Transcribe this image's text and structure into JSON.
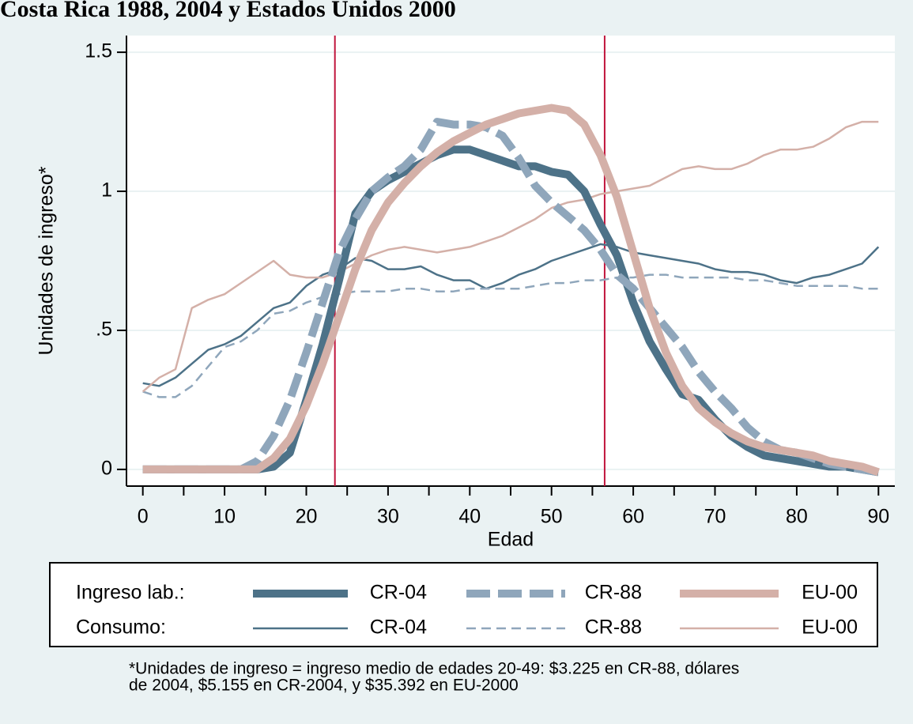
{
  "chart_data": {
    "type": "line",
    "title": "Costa Rica 1988, 2004 y Estados Unidos 2000",
    "x_label": "Edad",
    "y_label": "Unidades de ingreso*",
    "x": [
      0,
      2,
      4,
      6,
      8,
      10,
      12,
      14,
      16,
      18,
      20,
      22,
      24,
      26,
      28,
      30,
      32,
      34,
      36,
      38,
      40,
      42,
      44,
      46,
      48,
      50,
      52,
      54,
      56,
      58,
      60,
      62,
      64,
      66,
      68,
      70,
      72,
      74,
      76,
      78,
      80,
      82,
      84,
      86,
      88,
      90
    ],
    "xlim": [
      -2,
      92
    ],
    "xticks": [
      0,
      10,
      20,
      30,
      40,
      50,
      60,
      70,
      80,
      90
    ],
    "xminor_ticks": [
      5,
      15,
      25,
      35,
      45,
      55,
      65,
      75,
      85
    ],
    "ylim": [
      -0.06,
      1.56
    ],
    "yticks": [
      0,
      {
        "value": 0.5,
        "label": ".5"
      },
      1,
      1.5
    ],
    "grid": true,
    "vlines": [
      23.5,
      56.5
    ],
    "vline_color": "#c0143c",
    "legend_rows": [
      "Ingreso lab.:",
      "Consumo:"
    ],
    "series": [
      {
        "name": "CR-04",
        "color": "#4d7288",
        "line_width": 10,
        "dash": null,
        "values": [
          0,
          0,
          0,
          0,
          0,
          0,
          0,
          0,
          0.01,
          0.06,
          0.25,
          0.45,
          0.68,
          0.92,
          1.0,
          1.04,
          1.07,
          1.1,
          1.13,
          1.15,
          1.15,
          1.13,
          1.11,
          1.09,
          1.09,
          1.07,
          1.06,
          1.0,
          0.88,
          0.77,
          0.6,
          0.46,
          0.36,
          0.27,
          0.25,
          0.18,
          0.12,
          0.08,
          0.05,
          0.04,
          0.03,
          0.02,
          0.01,
          0.01,
          0.0,
          -0.01
        ]
      },
      {
        "name": "CR-88",
        "color": "#8fa6bb",
        "line_width": 10,
        "dash": "30 10",
        "values": [
          0,
          0,
          0,
          0,
          0,
          0,
          0,
          0.03,
          0.12,
          0.25,
          0.42,
          0.6,
          0.78,
          0.9,
          1.0,
          1.05,
          1.09,
          1.15,
          1.25,
          1.24,
          1.24,
          1.23,
          1.2,
          1.12,
          1.02,
          0.96,
          0.91,
          0.86,
          0.79,
          0.7,
          0.65,
          0.58,
          0.51,
          0.44,
          0.35,
          0.28,
          0.22,
          0.15,
          0.1,
          0.07,
          0.06,
          0.04,
          0.02,
          0.01,
          0.0,
          -0.01
        ]
      },
      {
        "name": "EU-00",
        "color": "#d4b0a8",
        "line_width": 10,
        "dash": null,
        "values": [
          0,
          0,
          0,
          0,
          0,
          0,
          0,
          0,
          0.04,
          0.11,
          0.23,
          0.38,
          0.55,
          0.72,
          0.86,
          0.96,
          1.03,
          1.09,
          1.14,
          1.18,
          1.21,
          1.24,
          1.26,
          1.28,
          1.29,
          1.3,
          1.29,
          1.24,
          1.13,
          0.98,
          0.78,
          0.58,
          0.42,
          0.3,
          0.22,
          0.17,
          0.13,
          0.1,
          0.08,
          0.07,
          0.06,
          0.05,
          0.03,
          0.02,
          0.01,
          -0.01
        ]
      },
      {
        "name": "CR-04",
        "color": "#4d7288",
        "line_width": 2.5,
        "dash": null,
        "values": [
          0.31,
          0.3,
          0.33,
          0.38,
          0.43,
          0.45,
          0.48,
          0.53,
          0.58,
          0.6,
          0.66,
          0.7,
          0.72,
          0.76,
          0.75,
          0.72,
          0.72,
          0.73,
          0.7,
          0.68,
          0.68,
          0.65,
          0.67,
          0.7,
          0.72,
          0.75,
          0.77,
          0.79,
          0.81,
          0.8,
          0.78,
          0.77,
          0.76,
          0.75,
          0.74,
          0.72,
          0.71,
          0.71,
          0.7,
          0.68,
          0.67,
          0.69,
          0.7,
          0.72,
          0.74,
          0.8
        ]
      },
      {
        "name": "CR-88",
        "color": "#8fa6bb",
        "line_width": 2.5,
        "dash": "12 7",
        "values": [
          0.28,
          0.26,
          0.26,
          0.3,
          0.37,
          0.44,
          0.46,
          0.5,
          0.56,
          0.57,
          0.6,
          0.62,
          0.63,
          0.64,
          0.64,
          0.64,
          0.65,
          0.65,
          0.64,
          0.64,
          0.65,
          0.65,
          0.65,
          0.65,
          0.66,
          0.67,
          0.67,
          0.68,
          0.68,
          0.69,
          0.69,
          0.7,
          0.7,
          0.69,
          0.69,
          0.69,
          0.69,
          0.68,
          0.68,
          0.67,
          0.66,
          0.66,
          0.66,
          0.66,
          0.65,
          0.65
        ]
      },
      {
        "name": "EU-00",
        "color": "#d4b0a8",
        "line_width": 2.5,
        "dash": null,
        "values": [
          0.28,
          0.33,
          0.36,
          0.58,
          0.61,
          0.63,
          0.67,
          0.71,
          0.75,
          0.7,
          0.69,
          0.69,
          0.71,
          0.74,
          0.77,
          0.79,
          0.8,
          0.79,
          0.78,
          0.79,
          0.8,
          0.82,
          0.84,
          0.87,
          0.9,
          0.94,
          0.96,
          0.97,
          0.99,
          1.0,
          1.01,
          1.02,
          1.05,
          1.08,
          1.09,
          1.08,
          1.08,
          1.1,
          1.13,
          1.15,
          1.15,
          1.16,
          1.19,
          1.23,
          1.25,
          1.25
        ]
      }
    ],
    "note": [
      "*Unidades de ingreso = ingreso medio de edades 20-49: $3.225 en CR-88, dólares",
      "de 2004, $5.155 en CR-2004, y $35.392 en EU-2000"
    ]
  }
}
